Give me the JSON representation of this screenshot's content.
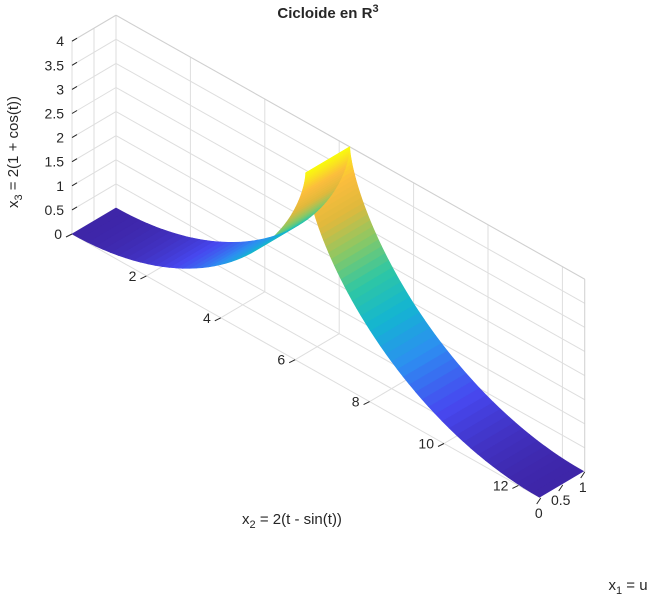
{
  "chart_data": {
    "type": "surface",
    "title": "Cicloide en R",
    "title_superscript": "3",
    "xlabel": {
      "base": "x",
      "sub": "1",
      "rest": " = u"
    },
    "ylabel": {
      "base": "x",
      "sub": "2",
      "rest": " = 2(t - sin(t))"
    },
    "zlabel": {
      "base": "x",
      "sub": "3",
      "rest": " = 2(1 + cos(t))"
    },
    "x_ticks": [
      "0",
      "0.5",
      "1"
    ],
    "y_ticks": [
      "0",
      "2",
      "4",
      "6",
      "8",
      "10",
      "12"
    ],
    "z_ticks": [
      "0.5",
      "1",
      "1.5",
      "2",
      "2.5",
      "3",
      "3.5",
      "4"
    ],
    "xlim": [
      0,
      1
    ],
    "ylim": [
      0,
      12.6
    ],
    "zlim": [
      0,
      4
    ],
    "parameter": {
      "name": "t",
      "range": [
        -3.14159,
        3.14159
      ]
    },
    "x_equation": "u",
    "y_equation": "2(t - sin(t))",
    "z_equation": "2(1 + cos(t))",
    "colormap": "parula",
    "colormap_stops": [
      "#3e26a8",
      "#4748f0",
      "#2d8ef1",
      "#14b5d1",
      "#2fc7a3",
      "#8ac865",
      "#e0b93c",
      "#fcbd3d",
      "#f9fb0e"
    ],
    "grid": true
  }
}
